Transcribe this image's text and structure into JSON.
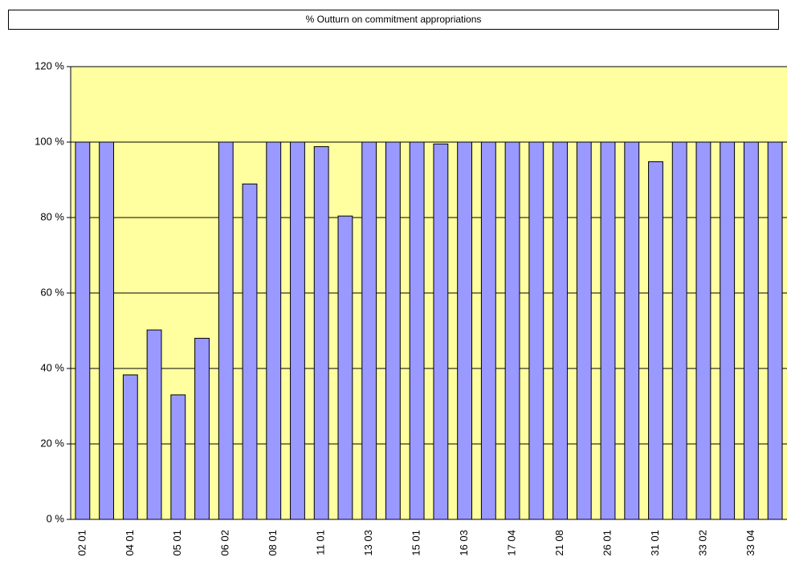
{
  "chart_data": {
    "type": "bar",
    "title": "% Outturn on commitment appropriations",
    "categories": [
      "02 01",
      null,
      "04 01",
      null,
      "05 01",
      null,
      "06 02",
      null,
      "08 01",
      null,
      "11 01",
      null,
      "13 03",
      null,
      "15 01",
      null,
      "16 03",
      null,
      "17 04",
      null,
      "21 08",
      null,
      "26 01",
      null,
      "31 01",
      null,
      "33 02",
      null,
      "33 04",
      null
    ],
    "values": [
      100,
      100,
      38.3,
      50.2,
      33,
      48,
      100,
      88.9,
      100,
      100,
      98.8,
      80.4,
      100,
      100,
      100,
      99.5,
      100,
      100,
      100,
      100,
      100,
      100,
      100,
      100,
      94.8,
      100,
      100,
      100,
      100,
      100
    ],
    "color": "#9999ff",
    "plot_background": "#ffffa0",
    "ylim": [
      0,
      120
    ],
    "yticks": [
      {
        "value": 0,
        "label": "0 %"
      },
      {
        "value": 20,
        "label": "20 %"
      },
      {
        "value": 40,
        "label": "40 %"
      },
      {
        "value": 60,
        "label": "60 %"
      },
      {
        "value": 80,
        "label": "80 %"
      },
      {
        "value": 100,
        "label": "100 %"
      },
      {
        "value": 120,
        "label": "120 %"
      }
    ],
    "grid": true
  }
}
